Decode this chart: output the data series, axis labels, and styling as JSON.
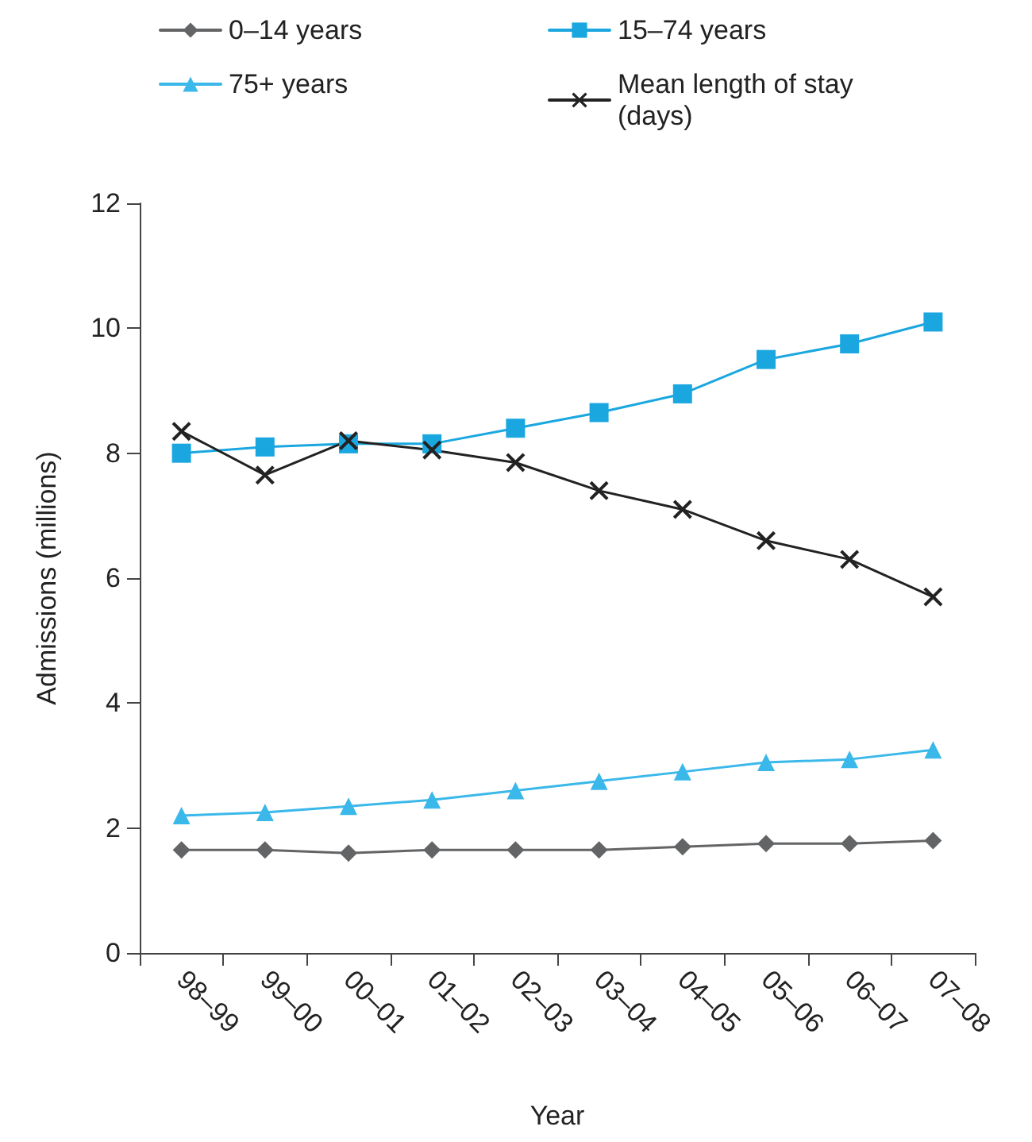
{
  "chart_data": {
    "type": "line",
    "xlabel": "Year",
    "ylabel": "Admissions (millions)",
    "categories": [
      "98–99",
      "99–00",
      "00–01",
      "01–02",
      "02–03",
      "03–04",
      "04–05",
      "05–06",
      "06–07",
      "07–08"
    ],
    "series": [
      {
        "name": "0–14 years",
        "color": "#636466",
        "marker": "diamond",
        "values": [
          1.65,
          1.65,
          1.6,
          1.65,
          1.65,
          1.65,
          1.7,
          1.75,
          1.75,
          1.8
        ]
      },
      {
        "name": "15–74 years",
        "color": "#1aa7e0",
        "marker": "square",
        "values": [
          8.0,
          8.1,
          8.15,
          8.15,
          8.4,
          8.65,
          8.95,
          9.5,
          9.75,
          10.1
        ]
      },
      {
        "name": "75+ years",
        "color": "#3bb8ea",
        "marker": "triangle",
        "values": [
          2.2,
          2.25,
          2.35,
          2.45,
          2.6,
          2.75,
          2.9,
          3.05,
          3.1,
          3.25
        ]
      },
      {
        "name": "Mean length of stay (days)",
        "color": "#222222",
        "marker": "cross",
        "values": [
          8.35,
          7.65,
          8.2,
          8.05,
          7.85,
          7.4,
          7.1,
          6.6,
          6.3,
          5.7
        ]
      }
    ],
    "ylim": [
      0,
      12
    ],
    "yticks": [
      0,
      2,
      4,
      6,
      8,
      10,
      12
    ],
    "grid": false,
    "legend": "top",
    "line_style": "solid"
  }
}
